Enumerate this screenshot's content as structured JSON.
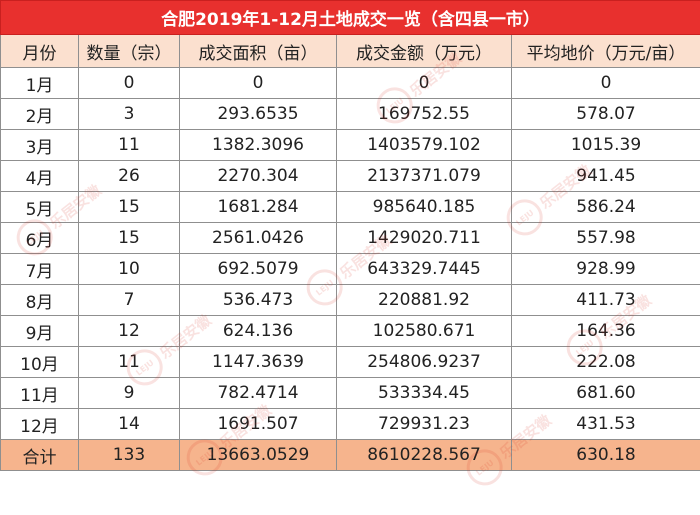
{
  "title": "合肥2019年1-12月土地成交一览（含四县一市）",
  "headers": [
    "月份",
    "数量（宗）",
    "成交面积（亩）",
    "成交金额（万元）",
    "平均地价（万元/亩）"
  ],
  "rows": [
    {
      "month": "1月",
      "count": "0",
      "area": "0",
      "amount": "0",
      "avg_price": "0"
    },
    {
      "month": "2月",
      "count": "3",
      "area": "293.6535",
      "amount": "169752.55",
      "avg_price": "578.07"
    },
    {
      "month": "3月",
      "count": "11",
      "area": "1382.3096",
      "amount": "1403579.102",
      "avg_price": "1015.39"
    },
    {
      "month": "4月",
      "count": "26",
      "area": "2270.304",
      "amount": "2137371.079",
      "avg_price": "941.45"
    },
    {
      "month": "5月",
      "count": "15",
      "area": "1681.284",
      "amount": "985640.185",
      "avg_price": "586.24"
    },
    {
      "month": "6月",
      "count": "15",
      "area": "2561.0426",
      "amount": "1429020.711",
      "avg_price": "557.98"
    },
    {
      "month": "7月",
      "count": "10",
      "area": "692.5079",
      "amount": "643329.7445",
      "avg_price": "928.99"
    },
    {
      "month": "8月",
      "count": "7",
      "area": "536.473",
      "amount": "220881.92",
      "avg_price": "411.73"
    },
    {
      "month": "9月",
      "count": "12",
      "area": "624.136",
      "amount": "102580.671",
      "avg_price": "164.36"
    },
    {
      "month": "10月",
      "count": "11",
      "area": "1147.3639",
      "amount": "254806.9237",
      "avg_price": "222.08"
    },
    {
      "month": "11月",
      "count": "9",
      "area": "782.4714",
      "amount": "533334.45",
      "avg_price": "681.60"
    },
    {
      "month": "12月",
      "count": "14",
      "area": "1691.507",
      "amount": "729931.23",
      "avg_price": "431.53"
    }
  ],
  "total": {
    "month": "合计",
    "count": "133",
    "area": "13663.0529",
    "amount": "8610228.567",
    "avg_price": "630.18"
  },
  "watermark": {
    "logo_text": "LEJU",
    "text": "乐居安徽"
  },
  "colors": {
    "title_bg": "#e8302e",
    "header_bg": "#fbe0cf",
    "total_bg": "#f6b48d",
    "border": "#8f8f8f"
  }
}
